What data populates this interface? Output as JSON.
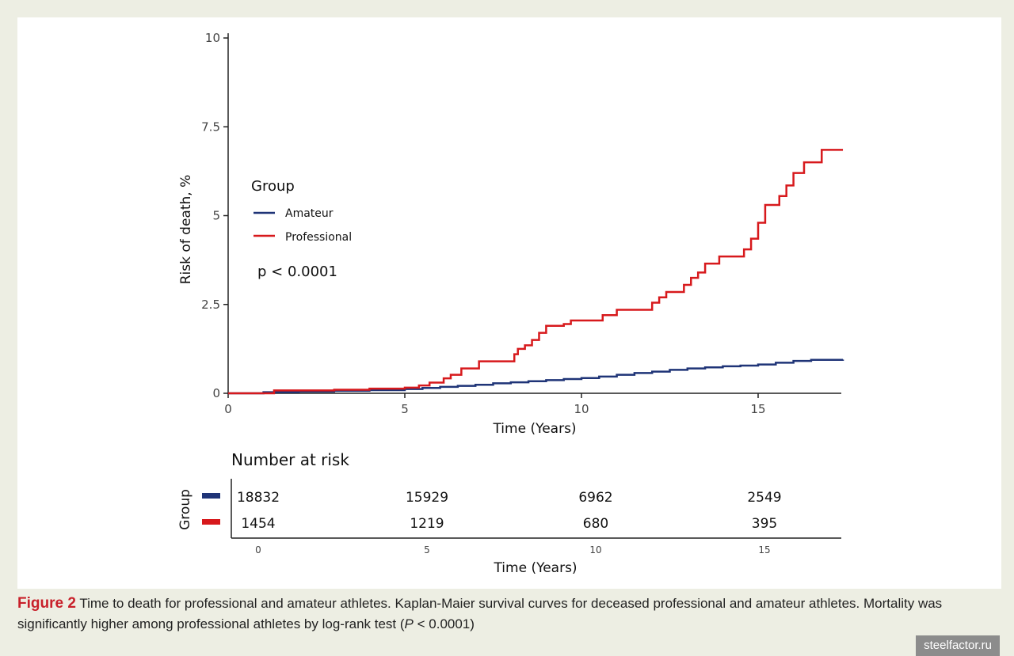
{
  "chart_data": {
    "type": "line",
    "subtype": "kaplan-meier-cumulative-risk",
    "xlabel": "Time (Years)",
    "ylabel": "Risk of death, %",
    "xlim": [
      0,
      17.4
    ],
    "ylim": [
      0,
      10
    ],
    "x_ticks": [
      "0",
      "5",
      "10",
      "15"
    ],
    "y_ticks": [
      "0",
      "2.5",
      "5",
      "7.5",
      "10"
    ],
    "grid": false,
    "legend": {
      "title": "Group",
      "placement": "top-left",
      "entries": [
        "Amateur",
        "Professional"
      ]
    },
    "annotation": "p < 0.0001",
    "series": [
      {
        "name": "Amateur",
        "color": "#1f3477",
        "x": [
          0,
          1,
          2,
          3,
          4,
          5,
          5.5,
          6,
          6.5,
          7,
          7.5,
          8,
          8.5,
          9,
          9.5,
          10,
          10.5,
          11,
          11.5,
          12,
          12.5,
          13,
          13.5,
          14,
          14.5,
          15,
          15.5,
          16,
          16.5,
          17.4
        ],
        "y": [
          0,
          0.03,
          0.05,
          0.07,
          0.09,
          0.12,
          0.15,
          0.18,
          0.21,
          0.24,
          0.28,
          0.31,
          0.34,
          0.37,
          0.4,
          0.43,
          0.47,
          0.52,
          0.57,
          0.61,
          0.66,
          0.7,
          0.73,
          0.76,
          0.78,
          0.81,
          0.86,
          0.91,
          0.94,
          0.95
        ]
      },
      {
        "name": "Professional",
        "color": "#d7191c",
        "x": [
          0,
          1.3,
          3,
          4,
          5,
          5.4,
          5.7,
          6.1,
          6.3,
          6.6,
          7.1,
          8.1,
          8.2,
          8.4,
          8.6,
          8.8,
          9.0,
          9.5,
          9.7,
          10.6,
          11.0,
          12.0,
          12.2,
          12.4,
          12.9,
          13.1,
          13.3,
          13.5,
          13.9,
          14.6,
          14.8,
          15.0,
          15.2,
          15.6,
          15.8,
          16.0,
          16.3,
          16.8
        ],
        "y": [
          0,
          0.08,
          0.1,
          0.13,
          0.16,
          0.22,
          0.3,
          0.42,
          0.52,
          0.7,
          0.9,
          1.1,
          1.25,
          1.35,
          1.5,
          1.7,
          1.9,
          1.95,
          2.05,
          2.2,
          2.35,
          2.55,
          2.7,
          2.85,
          3.05,
          3.25,
          3.4,
          3.65,
          3.85,
          4.05,
          4.35,
          4.8,
          5.3,
          5.55,
          5.85,
          6.2,
          6.5,
          6.85
        ]
      }
    ],
    "risk_table": {
      "title": "Number at risk",
      "ylabel": "Group",
      "xlabel": "Time (Years)",
      "x_ticks": [
        "0",
        "5",
        "10",
        "15"
      ],
      "rows": [
        {
          "name": "Amateur",
          "color": "#1f3477",
          "values": [
            "18832",
            "15929",
            "6962",
            "2549"
          ]
        },
        {
          "name": "Professional",
          "color": "#d7191c",
          "values": [
            "1454",
            "1219",
            "680",
            "395"
          ]
        }
      ]
    }
  },
  "caption": {
    "label": "Figure 2",
    "text": " Time to death for professional and amateur athletes. Kaplan-Maier survival curves for deceased professional and amateur athletes. Mortality was significantly higher among professional athletes by log-rank test (",
    "p_italic": "P",
    "text_end": " < 0.0001)"
  },
  "watermark": "steelfactor.ru"
}
